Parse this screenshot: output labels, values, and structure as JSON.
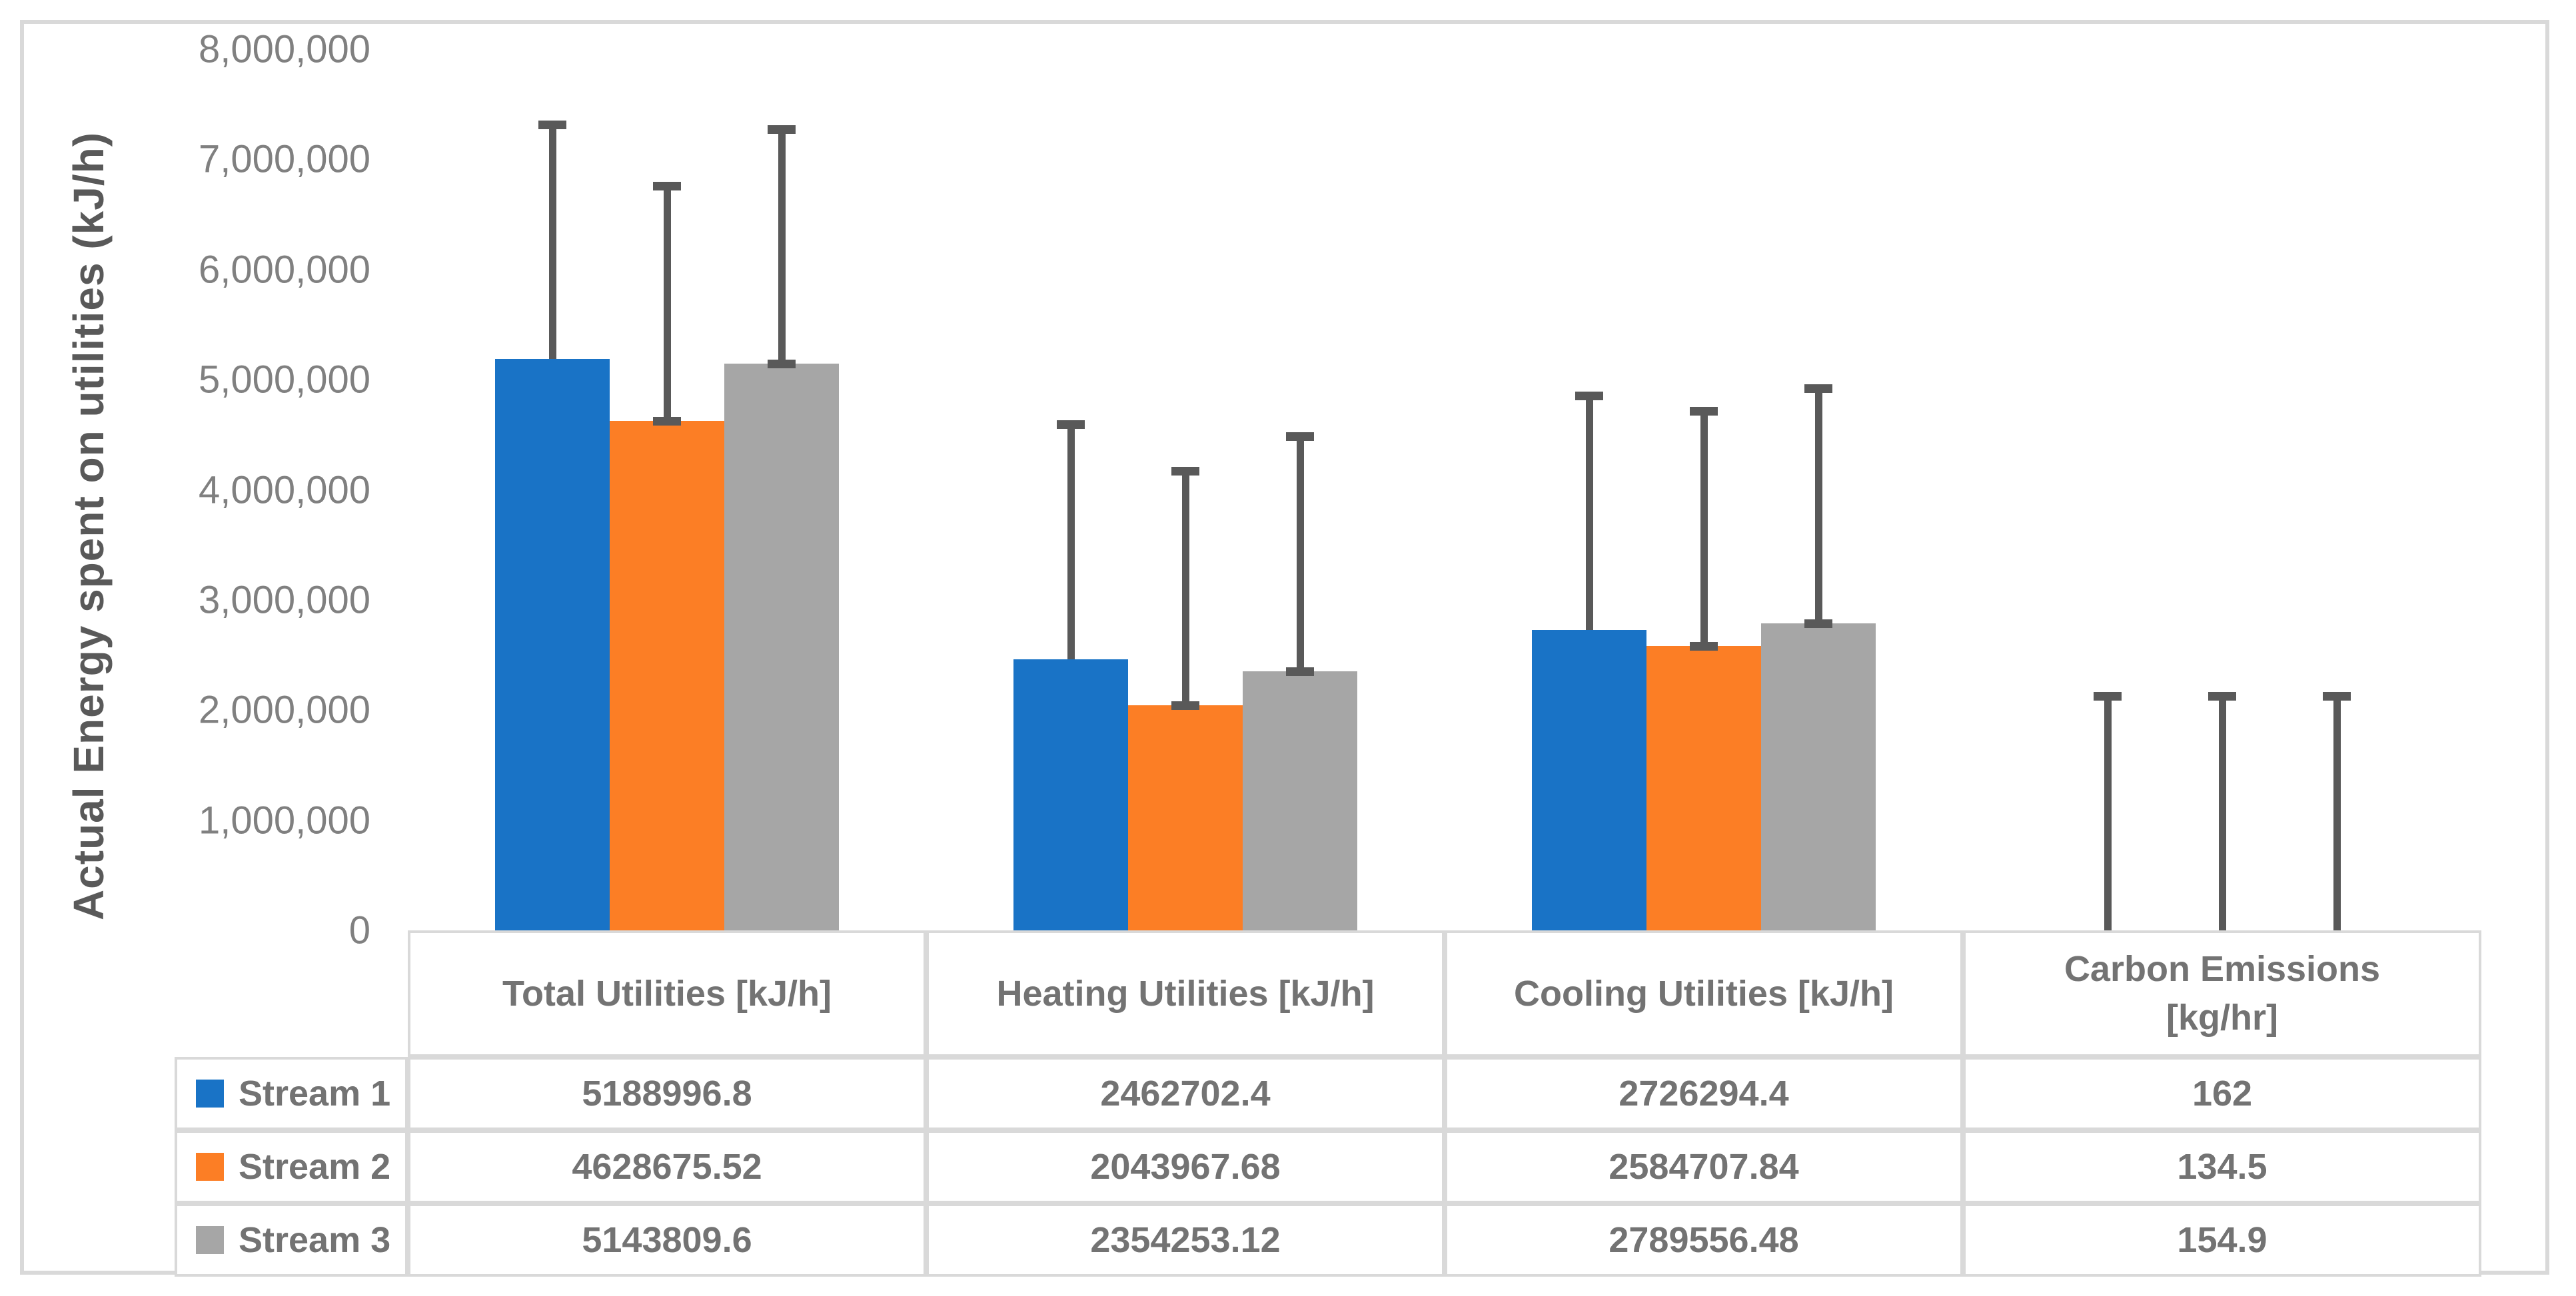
{
  "chart_data": {
    "type": "bar",
    "title": "",
    "ylabel": "Actual Energy spent on utilities (kJ/h)",
    "xlabel": "",
    "ylim": [
      0,
      8000000
    ],
    "ytick_step": 1000000,
    "ytick_labels": [
      "8,000,000",
      "7,000,000",
      "6,000,000",
      "5,000,000",
      "4,000,000",
      "3,000,000",
      "2,000,000",
      "1,000,000",
      "0"
    ],
    "gridlines": false,
    "legend_position": "data-table-left-keys",
    "categories": [
      "Total Utilities [kJ/h]",
      "Heating Utilities [kJ/h]",
      "Cooling Utilities [kJ/h]",
      "Carbon Emissions\n[kg/hr]"
    ],
    "series": [
      {
        "name": "Stream 1",
        "color": "#1973C6",
        "values": [
          5188996.8,
          2462702.4,
          2726294.4,
          162
        ],
        "display": [
          "5188996.8",
          "2462702.4",
          "2726294.4",
          "162"
        ]
      },
      {
        "name": "Stream 2",
        "color": "#FC7E25",
        "values": [
          4628675.52,
          2043967.68,
          2584707.84,
          134.5
        ],
        "display": [
          "4628675.52",
          "2043967.68",
          "2584707.84",
          "134.5"
        ]
      },
      {
        "name": "Stream 3",
        "color": "#A6A6A6",
        "values": [
          5143809.6,
          2354253.12,
          2789556.48,
          154.9
        ],
        "display": [
          "5143809.6",
          "2354253.12",
          "2789556.48",
          "154.9"
        ]
      }
    ],
    "error_bars": {
      "direction": "plus",
      "cap": true,
      "amount_estimated": 2130000,
      "color": "#595959"
    },
    "colors": {
      "border": "#D9D9D9",
      "tick_text": "#808080",
      "table_text": "#737373",
      "axis_title_text": "#595959",
      "error_bar": "#595959"
    }
  }
}
